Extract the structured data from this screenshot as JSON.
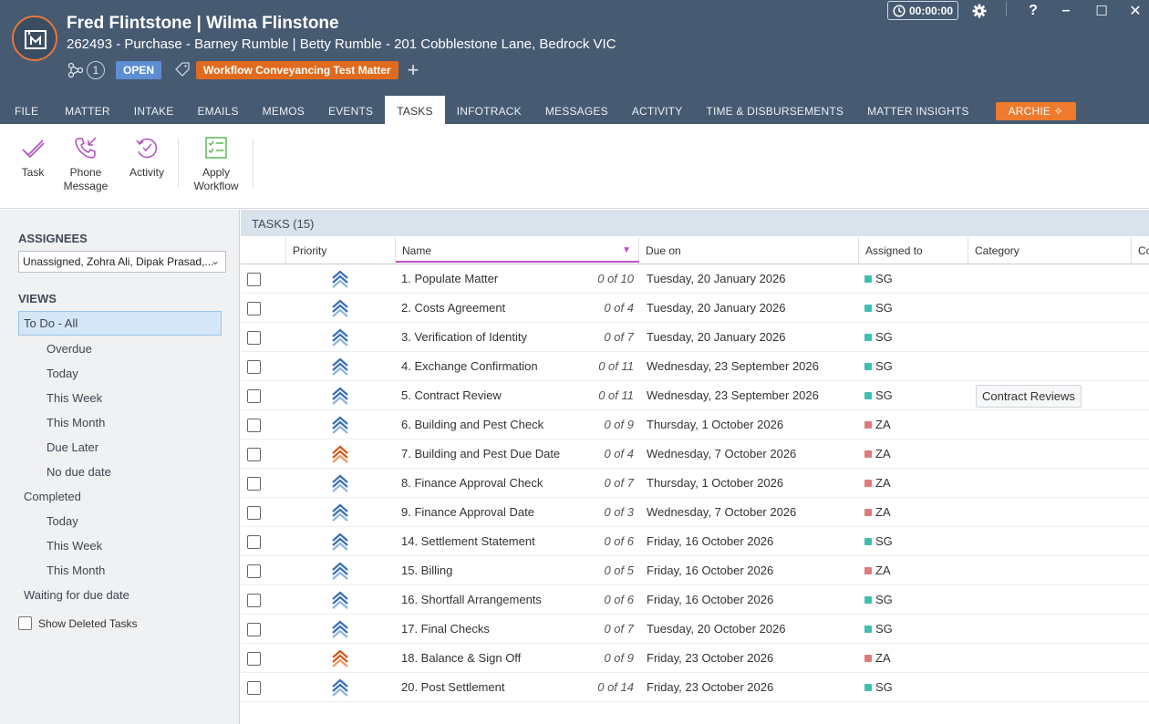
{
  "header": {
    "title": "Fred Flintstone | Wilma Flinstone",
    "subtitle": "262493 - Purchase - Barney Rumble | Betty Rumble - 201 Cobblestone Lane, Bedrock VIC",
    "link_count": "1",
    "status": "OPEN",
    "workflow_tag": "Workflow Conveyancing Test Matter",
    "add_label": "+",
    "timer": "00:00:00",
    "help_label": "?",
    "minimize_label": "–",
    "maximize_label": "☐",
    "close_label": "✕",
    "colors": {
      "header_bg": "#465a72",
      "accent": "#e06b1f",
      "status_bg": "#5d8ed3"
    }
  },
  "tabs": [
    {
      "label": "FILE"
    },
    {
      "label": "MATTER"
    },
    {
      "label": "INTAKE"
    },
    {
      "label": "EMAILS"
    },
    {
      "label": "MEMOS"
    },
    {
      "label": "EVENTS"
    },
    {
      "label": "TASKS",
      "active": true
    },
    {
      "label": "INFOTRACK"
    },
    {
      "label": "MESSAGES"
    },
    {
      "label": "ACTIVITY"
    },
    {
      "label": "TIME & DISBURSEMENTS"
    },
    {
      "label": "MATTER INSIGHTS"
    }
  ],
  "archie_tab": "ARCHIE ✧",
  "ribbon": {
    "task": "Task",
    "phone_1": "Phone",
    "phone_2": "Message",
    "activity": "Activity",
    "apply_1": "Apply",
    "apply_2": "Workflow"
  },
  "sidebar": {
    "assignees_heading": "ASSIGNEES",
    "assignees_value": "Unassigned, Zohra Ali, Dipak Prasad,...",
    "views_heading": "VIEWS",
    "views": [
      {
        "label": "To Do - All",
        "selected": true
      },
      {
        "label": "Overdue"
      },
      {
        "label": "Today"
      },
      {
        "label": "This Week"
      },
      {
        "label": "This Month"
      },
      {
        "label": "Due Later"
      },
      {
        "label": "No due date"
      },
      {
        "label": "Completed"
      },
      {
        "label": "Today"
      },
      {
        "label": "This Week"
      },
      {
        "label": "This Month"
      },
      {
        "label": "Waiting for due date"
      }
    ],
    "show_deleted": "Show Deleted Tasks"
  },
  "list": {
    "title": "TASKS (15)",
    "columns": {
      "priority": "Priority",
      "name": "Name",
      "due": "Due on",
      "assigned": "Assigned to",
      "category": "Category",
      "extra": "Co"
    },
    "rows": [
      {
        "name": "1. Populate Matter",
        "progress": "0 of 10",
        "due": "Tuesday, 20 January 2026",
        "assignee": "SG",
        "priority": "normal",
        "category": ""
      },
      {
        "name": "2. Costs Agreement",
        "progress": "0 of 4",
        "due": "Tuesday, 20 January 2026",
        "assignee": "SG",
        "priority": "normal",
        "category": ""
      },
      {
        "name": "3. Verification of Identity",
        "progress": "0 of 7",
        "due": "Tuesday, 20 January 2026",
        "assignee": "SG",
        "priority": "normal",
        "category": ""
      },
      {
        "name": "4. Exchange Confirmation",
        "progress": "0 of 11",
        "due": "Wednesday, 23 September 2026",
        "assignee": "SG",
        "priority": "normal",
        "category": ""
      },
      {
        "name": "5. Contract Review",
        "progress": "0 of 11",
        "due": "Wednesday, 23 September 2026",
        "assignee": "SG",
        "priority": "normal",
        "category": "Contract Reviews"
      },
      {
        "name": "6. Building and Pest Check",
        "progress": "0 of 9",
        "due": "Thursday, 1 October 2026",
        "assignee": "ZA",
        "priority": "normal",
        "category": ""
      },
      {
        "name": "7. Building and Pest Due Date",
        "progress": "0 of 4",
        "due": "Wednesday, 7 October 2026",
        "assignee": "ZA",
        "priority": "high",
        "category": ""
      },
      {
        "name": "8. Finance Approval Check",
        "progress": "0 of 7",
        "due": "Thursday, 1 October 2026",
        "assignee": "ZA",
        "priority": "normal",
        "category": ""
      },
      {
        "name": "9. Finance Approval Date",
        "progress": "0 of 3",
        "due": "Wednesday, 7 October 2026",
        "assignee": "ZA",
        "priority": "normal",
        "category": ""
      },
      {
        "name": "14. Settlement Statement",
        "progress": "0 of 6",
        "due": "Friday, 16 October 2026",
        "assignee": "SG",
        "priority": "normal",
        "category": ""
      },
      {
        "name": "15. Billing",
        "progress": "0 of 5",
        "due": "Friday, 16 October 2026",
        "assignee": "ZA",
        "priority": "normal",
        "category": ""
      },
      {
        "name": "16. Shortfall Arrangements",
        "progress": "0 of 6",
        "due": "Friday, 16 October 2026",
        "assignee": "SG",
        "priority": "normal",
        "category": ""
      },
      {
        "name": "17. Final Checks",
        "progress": "0 of 7",
        "due": "Tuesday, 20 October 2026",
        "assignee": "SG",
        "priority": "normal",
        "category": ""
      },
      {
        "name": "18. Balance & Sign Off",
        "progress": "0 of 9",
        "due": "Friday, 23 October 2026",
        "assignee": "ZA",
        "priority": "high",
        "category": ""
      },
      {
        "name": "20. Post Settlement",
        "progress": "0 of 14",
        "due": "Friday, 23 October 2026",
        "assignee": "SG",
        "priority": "normal",
        "category": ""
      }
    ],
    "assignee_colors": {
      "SG": "#3fbfb0",
      "ZA": "#e07a7a"
    },
    "priority_colors": {
      "normal": "#3a6fb4",
      "normal_light": "#8fb4dd",
      "high": "#d05a1a",
      "high_light": "#eb9a6a"
    }
  }
}
